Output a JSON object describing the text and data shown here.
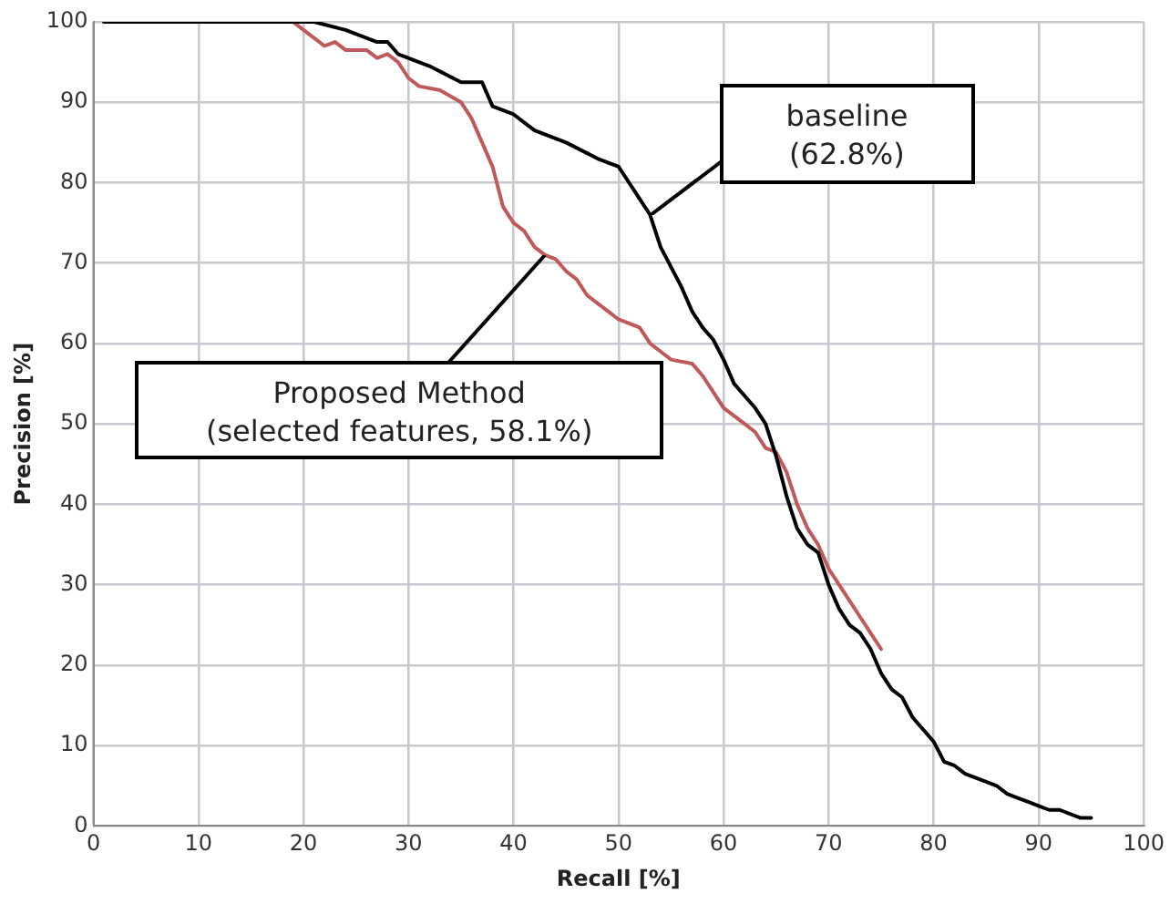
{
  "chart_data": {
    "type": "line",
    "xlabel": "Recall [%]",
    "ylabel": "Precision [%]",
    "xlim": [
      0,
      100
    ],
    "xticks": [
      0,
      10,
      20,
      30,
      40,
      50,
      60,
      70,
      80,
      90,
      100
    ],
    "ylim": [
      0,
      100
    ],
    "yticks": [
      0,
      10,
      20,
      30,
      40,
      50,
      60,
      70,
      80,
      90,
      100
    ],
    "grid": true,
    "legend": false,
    "marker": "none",
    "line_style": "solid",
    "series": [
      {
        "color": "#000000",
        "x": [
          1,
          21,
          24,
          27,
          28,
          29,
          32,
          35,
          37,
          38,
          40,
          42,
          45,
          48,
          50,
          51,
          52,
          53,
          54,
          56,
          57,
          58,
          59,
          60,
          61,
          63,
          64,
          65,
          66,
          67,
          68,
          69,
          70,
          71,
          72,
          73,
          74,
          75,
          76,
          77,
          78,
          79,
          80,
          81,
          82,
          83,
          85,
          86,
          87,
          88,
          89,
          90,
          91,
          92,
          94,
          95
        ],
        "values": [
          100,
          100,
          99,
          97.5,
          97.5,
          96,
          94.5,
          92.5,
          92.5,
          89.5,
          88.5,
          86.5,
          85,
          83,
          82,
          80,
          78,
          76,
          72,
          67,
          64,
          62,
          60.5,
          58,
          55,
          52,
          50,
          46,
          41,
          37,
          35,
          34,
          30,
          27,
          25,
          24,
          22,
          19,
          17,
          16,
          13.5,
          12,
          10.5,
          8,
          7.5,
          6.5,
          5.5,
          5,
          4,
          3.5,
          3,
          2.5,
          2,
          2,
          1,
          1
        ]
      },
      {
        "color": "#c0595a",
        "x": [
          1,
          19,
          20,
          21,
          22,
          23,
          24,
          26,
          27,
          28,
          29,
          30,
          31,
          33,
          35,
          36,
          37,
          38,
          39,
          40,
          41,
          42,
          43,
          44,
          45,
          46,
          47,
          48,
          49,
          50,
          51,
          52,
          53,
          54,
          55,
          57,
          58,
          59,
          60,
          62,
          63,
          64,
          65,
          66,
          67,
          68,
          69,
          70,
          71,
          72,
          73,
          74,
          75
        ],
        "values": [
          100,
          100,
          99,
          98,
          97,
          97.5,
          96.5,
          96.5,
          95.5,
          96,
          95,
          93,
          92,
          91.5,
          90,
          88,
          85,
          82,
          77,
          75,
          74,
          72,
          71,
          70.5,
          69,
          68,
          66,
          65,
          64,
          63,
          62.5,
          62,
          60,
          59,
          58,
          57.5,
          56,
          54,
          52,
          50,
          49,
          47,
          46.5,
          44,
          40,
          37,
          35,
          32,
          30,
          28,
          26,
          24,
          22
        ]
      }
    ],
    "annotations": [
      {
        "text": "baseline\n(62.8%)",
        "x": 53,
        "y": 76
      },
      {
        "text": "Proposed Method\n(selected features, 58.1%)",
        "x": 43,
        "y": 71
      }
    ]
  }
}
